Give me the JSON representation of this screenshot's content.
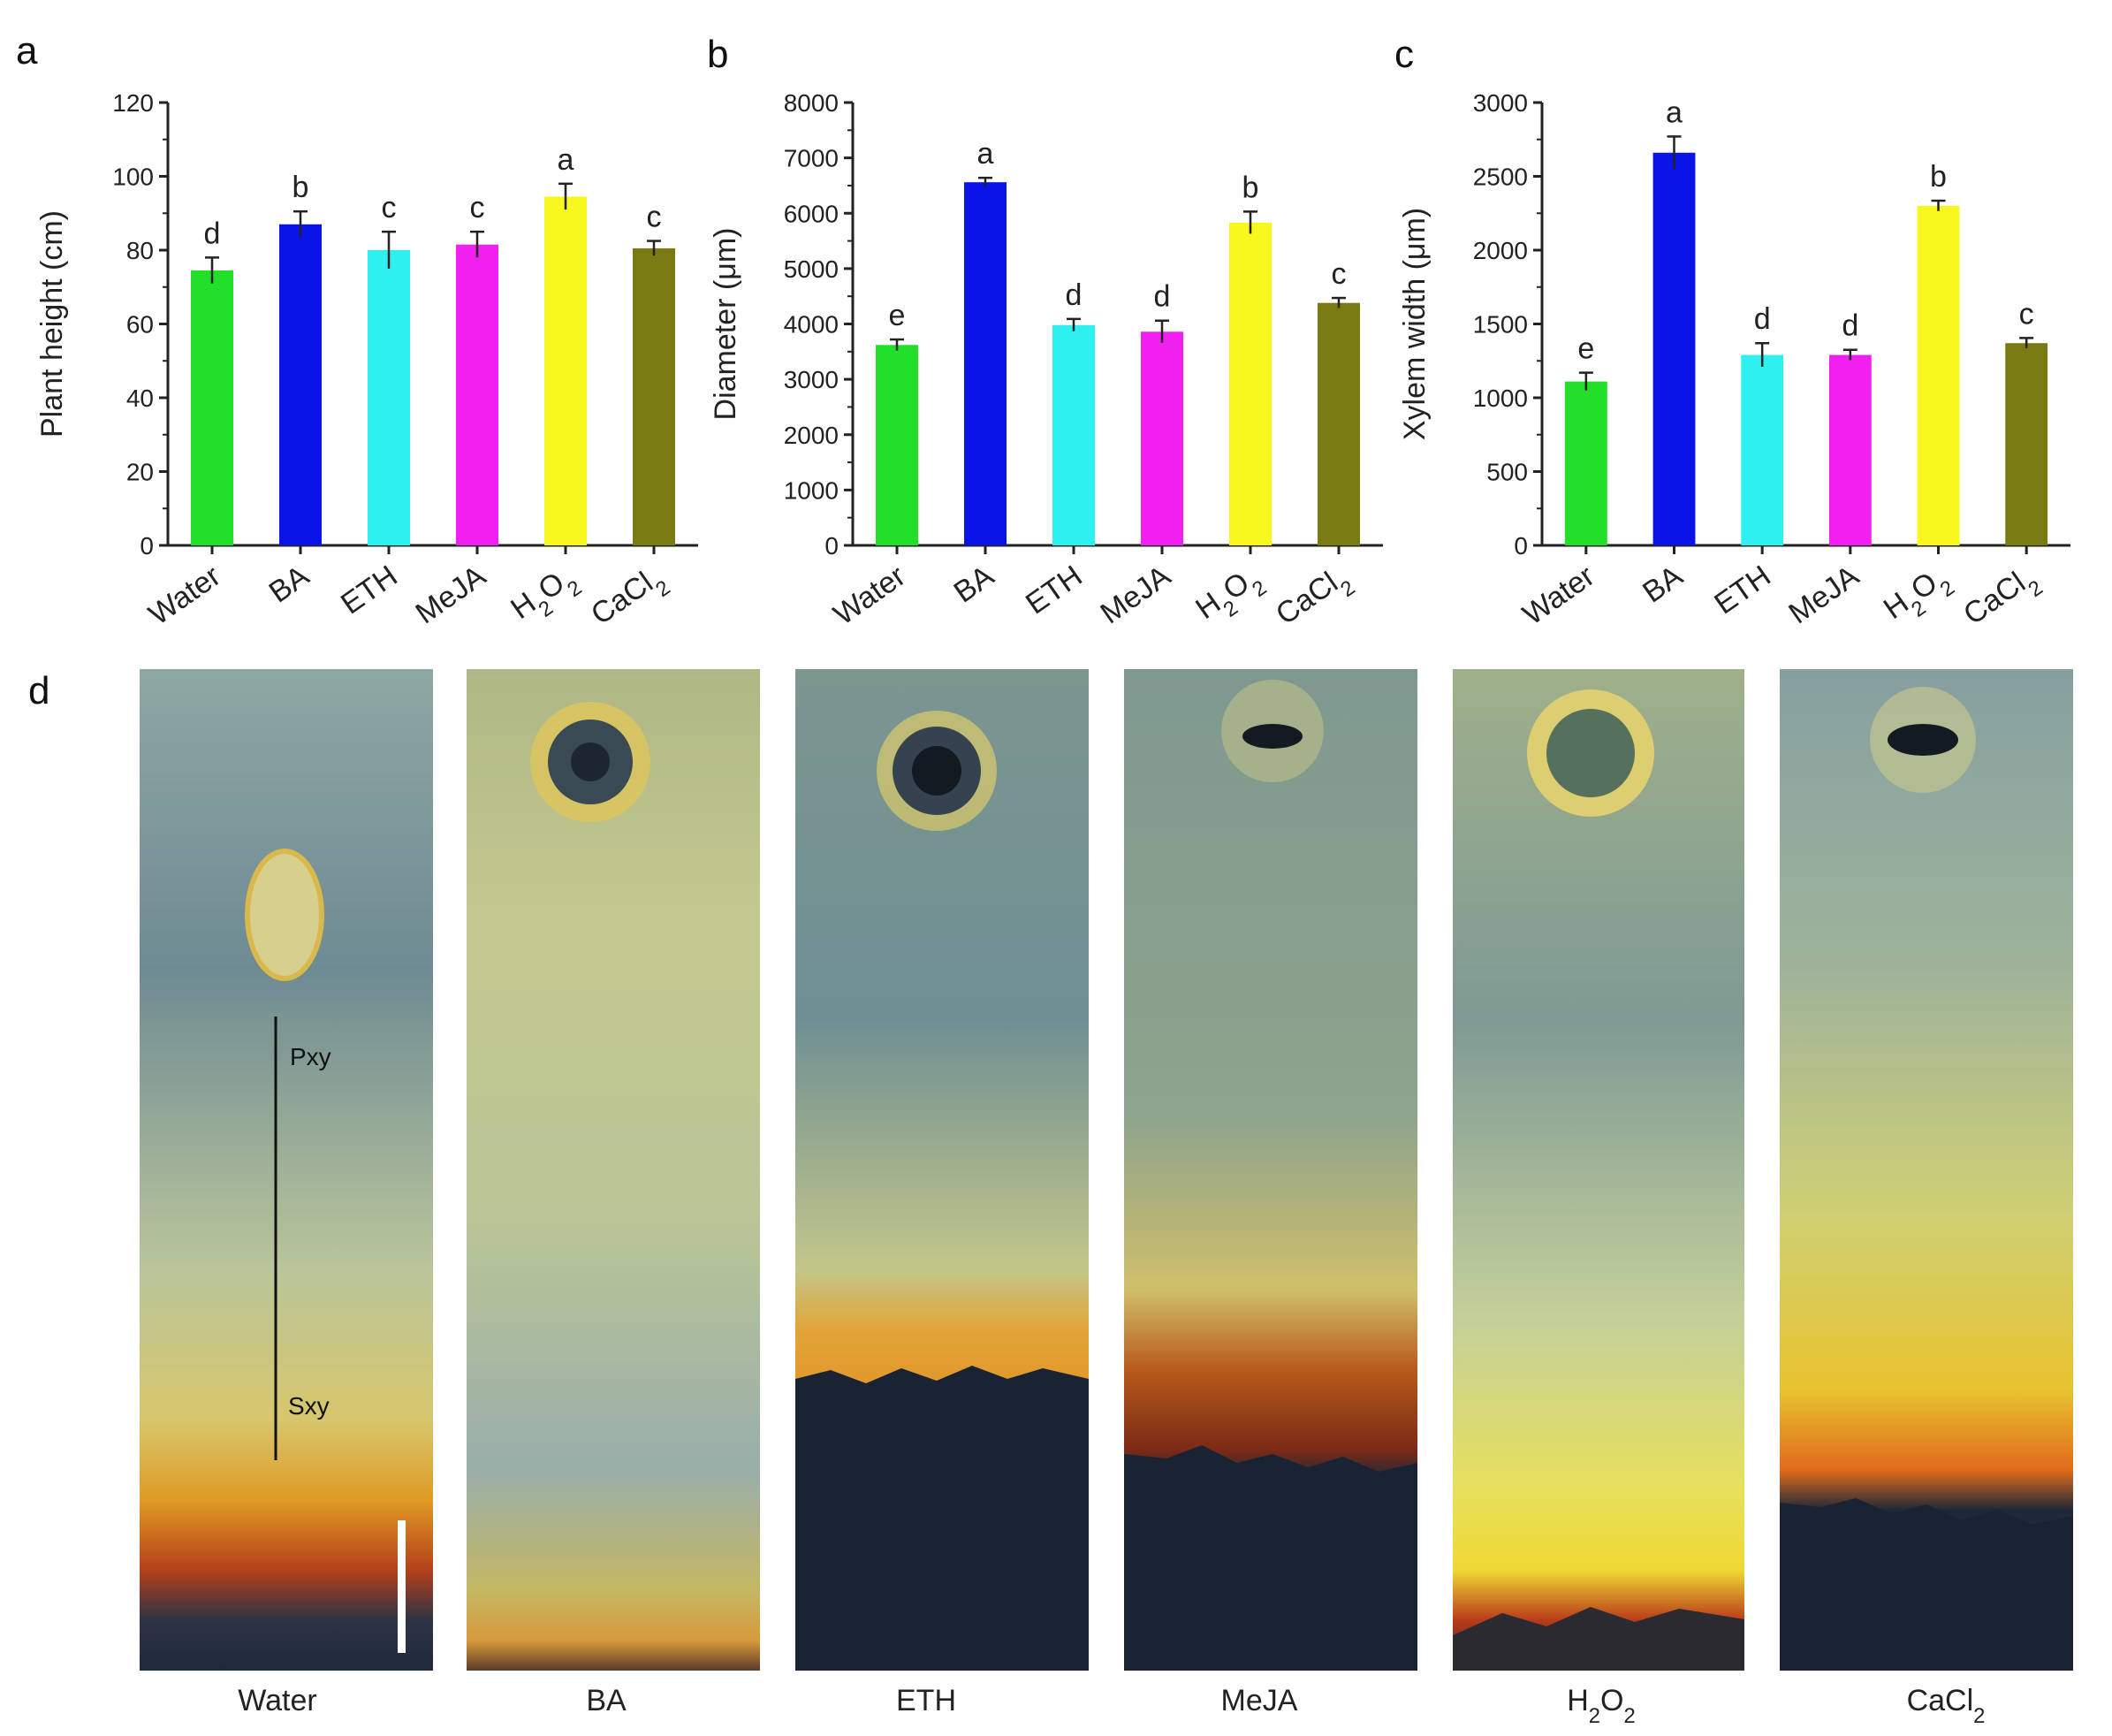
{
  "panel_letters": [
    "a",
    "b",
    "c",
    "d"
  ],
  "colors": [
    "#22e02a",
    "#0a14e6",
    "#2ff0f0",
    "#f020f0",
    "#f8f81e",
    "#7a7a12"
  ],
  "chart_data": [
    {
      "type": "bar",
      "panel": "a",
      "categories": [
        "Water",
        "BA",
        "ETH",
        "MeJA",
        "H2O2",
        "CaCl2"
      ],
      "values": [
        74.5,
        87,
        80,
        81.5,
        94.5,
        80.5
      ],
      "errors": [
        3.5,
        3.5,
        5,
        3.5,
        3.5,
        2
      ],
      "significance": [
        "d",
        "b",
        "c",
        "c",
        "a",
        "c"
      ],
      "title": "",
      "xlabel": "",
      "ylabel": "Plant height (cm)",
      "ylim": [
        0,
        120
      ],
      "yticks": [
        0,
        20,
        40,
        60,
        80,
        100,
        120
      ]
    },
    {
      "type": "bar",
      "panel": "b",
      "categories": [
        "Water",
        "BA",
        "ETH",
        "MeJA",
        "H2O2",
        "CaCl2"
      ],
      "values": [
        3620,
        6560,
        3980,
        3860,
        5830,
        4380
      ],
      "errors": [
        100,
        80,
        110,
        200,
        200,
        90
      ],
      "significance": [
        "e",
        "a",
        "d",
        "d",
        "b",
        "c"
      ],
      "title": "",
      "xlabel": "",
      "ylabel": "Diameter (μm)",
      "ylim": [
        0,
        8000
      ],
      "yticks": [
        0,
        1000,
        2000,
        3000,
        4000,
        5000,
        6000,
        7000,
        8000
      ]
    },
    {
      "type": "bar",
      "panel": "c",
      "categories": [
        "Water",
        "BA",
        "ETH",
        "MeJA",
        "H2O2",
        "CaCl2"
      ],
      "values": [
        1110,
        2660,
        1290,
        1290,
        2300,
        1370
      ],
      "errors": [
        60,
        110,
        80,
        35,
        35,
        35
      ],
      "significance": [
        "e",
        "a",
        "d",
        "d",
        "b",
        "c"
      ],
      "title": "",
      "xlabel": "",
      "ylabel": "Xylem width (μm)",
      "ylim": [
        0,
        3000
      ],
      "yticks": [
        0,
        500,
        1000,
        1500,
        2000,
        2500,
        3000
      ]
    }
  ],
  "photos": {
    "captions": [
      "Water",
      "BA",
      "ETH",
      "MeJA",
      "H2O2",
      "CaCl2"
    ],
    "annotation_top": "Pxy",
    "annotation_bottom": "Sxy"
  }
}
